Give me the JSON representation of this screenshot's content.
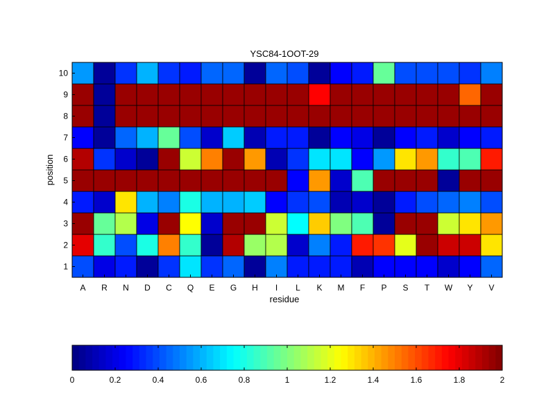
{
  "chart_data": {
    "type": "heatmap",
    "title": "YSC84-1OOT-29",
    "xlabel": "residue",
    "ylabel": "position",
    "x_categories": [
      "A",
      "R",
      "N",
      "D",
      "C",
      "Q",
      "E",
      "G",
      "H",
      "I",
      "L",
      "K",
      "M",
      "F",
      "P",
      "S",
      "T",
      "W",
      "Y",
      "V"
    ],
    "y_categories": [
      "1",
      "2",
      "3",
      "4",
      "5",
      "6",
      "7",
      "8",
      "9",
      "10"
    ],
    "values": [
      [
        0.4,
        0.2,
        0.3,
        0.05,
        0.35,
        0.7,
        0.35,
        0.45,
        0.05,
        0.5,
        0.3,
        0.3,
        0.3,
        0.1,
        0.25,
        0.25,
        0.25,
        0.15,
        0.25,
        0.45
      ],
      [
        1.8,
        0.85,
        0.4,
        0.8,
        1.5,
        0.85,
        0.05,
        1.9,
        1.05,
        1.1,
        0.15,
        0.5,
        0.3,
        1.7,
        1.65,
        1.2,
        1.95,
        1.85,
        1.85,
        1.3
      ],
      [
        1.95,
        0.95,
        1.1,
        0.2,
        1.95,
        1.25,
        0.15,
        1.95,
        1.95,
        1.15,
        0.75,
        1.35,
        1.0,
        0.9,
        0.05,
        1.95,
        1.95,
        1.15,
        1.3,
        1.45
      ],
      [
        0.3,
        0.15,
        1.3,
        0.6,
        0.5,
        0.8,
        0.6,
        0.6,
        0.65,
        0.25,
        0.35,
        0.4,
        0.1,
        0.15,
        0.05,
        0.3,
        0.4,
        0.45,
        0.5,
        0.4
      ],
      [
        1.95,
        1.95,
        1.95,
        1.95,
        1.95,
        1.95,
        1.95,
        1.95,
        1.95,
        1.95,
        0.25,
        1.45,
        0.15,
        0.9,
        1.95,
        1.95,
        1.95,
        0.05,
        1.95,
        1.95
      ],
      [
        1.9,
        0.35,
        0.15,
        0.05,
        1.95,
        1.15,
        1.5,
        1.95,
        1.45,
        0.1,
        0.35,
        0.7,
        0.7,
        0.25,
        0.55,
        1.3,
        1.45,
        0.85,
        0.9,
        1.7
      ],
      [
        0.25,
        0.05,
        0.45,
        0.6,
        0.95,
        0.4,
        0.15,
        0.65,
        0.1,
        0.3,
        0.3,
        0.05,
        0.25,
        0.2,
        0.05,
        0.25,
        0.3,
        0.15,
        0.25,
        0.3
      ],
      [
        1.95,
        0.05,
        1.95,
        1.95,
        1.95,
        1.95,
        1.95,
        1.95,
        1.95,
        1.95,
        1.95,
        1.95,
        1.95,
        1.95,
        1.95,
        1.95,
        1.95,
        1.95,
        1.95,
        1.95
      ],
      [
        1.95,
        0.05,
        1.95,
        1.95,
        1.95,
        1.95,
        1.95,
        1.95,
        1.95,
        1.95,
        1.95,
        1.75,
        1.95,
        1.95,
        1.95,
        1.95,
        1.95,
        1.95,
        1.55,
        1.95
      ],
      [
        0.55,
        0.05,
        0.35,
        0.6,
        0.35,
        0.3,
        0.45,
        0.45,
        0.05,
        0.45,
        0.4,
        0.05,
        0.25,
        0.3,
        0.95,
        0.4,
        0.4,
        0.4,
        0.35,
        0.5
      ]
    ],
    "colorbar": {
      "min": 0,
      "max": 2,
      "ticks": [
        "0",
        "0.2",
        "0.4",
        "0.6",
        "0.8",
        "1",
        "1.2",
        "1.4",
        "1.6",
        "1.8",
        "2"
      ],
      "colormap": "jet"
    },
    "grid": false
  }
}
